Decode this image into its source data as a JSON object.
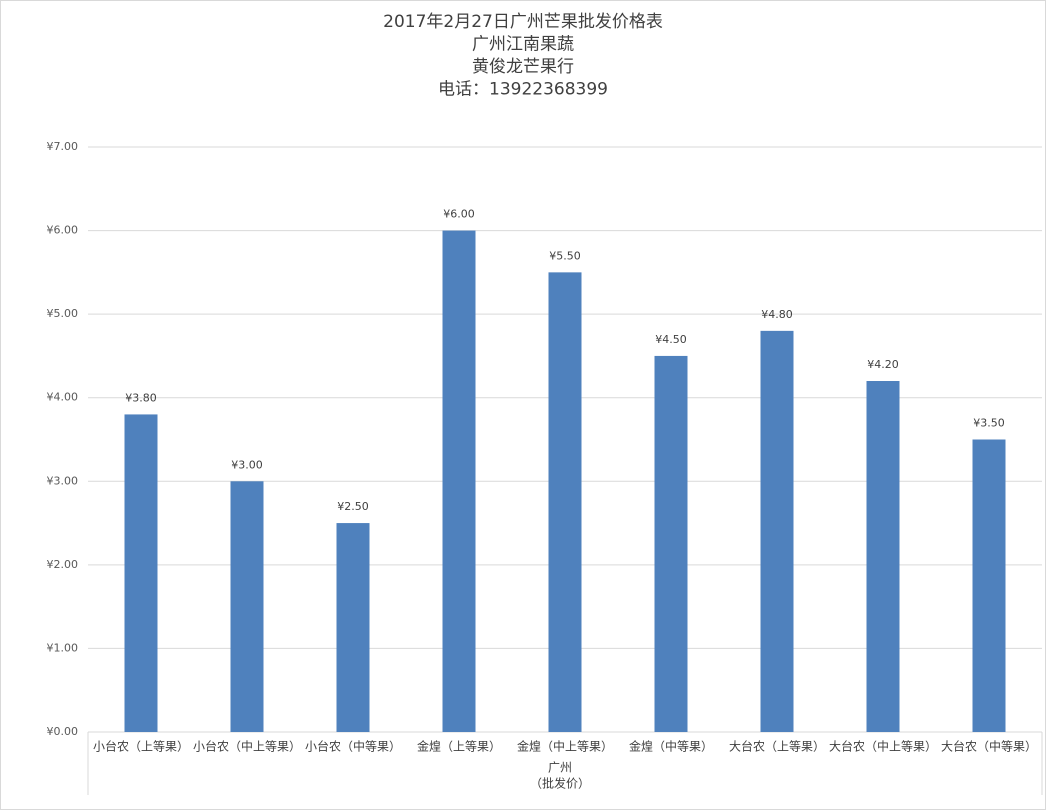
{
  "chart_data": {
    "type": "bar",
    "title_lines": [
      "2017年2月27日广州芒果批发价格表",
      "广州江南果蔬",
      "黄俊龙芒果行",
      "电话：13922368399"
    ],
    "xlabel_lines": [
      "广州",
      "（批发价）"
    ],
    "categories": [
      "小台农（上等果）",
      "小台农（中上等果）",
      "小台农（中等果）",
      "金煌（上等果）",
      "金煌（中上等果）",
      "金煌（中等果）",
      "大台农（上等果）",
      "大台农（中上等果）",
      "大台农（中等果）"
    ],
    "values": [
      3.8,
      3.0,
      2.5,
      6.0,
      5.5,
      4.5,
      4.8,
      4.2,
      3.5
    ],
    "value_labels": [
      "¥3.80",
      "¥3.00",
      "¥2.50",
      "¥6.00",
      "¥5.50",
      "¥4.50",
      "¥4.80",
      "¥4.20",
      "¥3.50"
    ],
    "color": "#4f81bd",
    "ylim": [
      0,
      7
    ],
    "yticks": [
      {
        "value": 0,
        "label": "¥0.00"
      },
      {
        "value": 1,
        "label": "¥1.00"
      },
      {
        "value": 2,
        "label": "¥2.00"
      },
      {
        "value": 3,
        "label": "¥3.00"
      },
      {
        "value": 4,
        "label": "¥4.00"
      },
      {
        "value": 5,
        "label": "¥5.00"
      },
      {
        "value": 6,
        "label": "¥6.00"
      },
      {
        "value": 7,
        "label": "¥7.00"
      }
    ],
    "grid": true
  }
}
